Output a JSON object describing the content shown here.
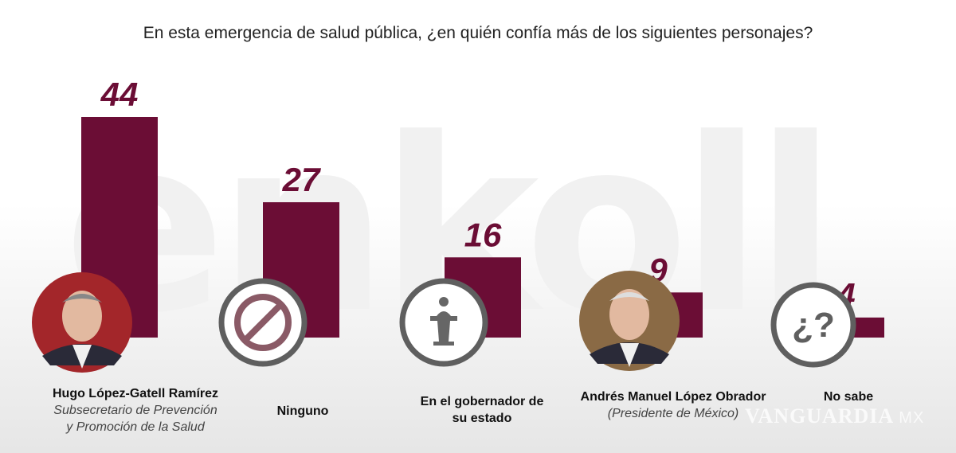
{
  "chart_data": {
    "type": "bar",
    "title": "En esta emergencia de salud pública, ¿en quién confía más de los siguientes personajes?",
    "categories": [
      "Hugo López-Gatell Ramírez",
      "Ninguno",
      "En el gobernador de su estado",
      "Andrés Manuel López Obrador",
      "No sabe"
    ],
    "subtitles": [
      "Subsecretario de Prevención y Promoción de la Salud",
      "",
      "",
      "(Presidente de México)",
      ""
    ],
    "icons": [
      "photo-lopez-gatell",
      "prohibited-icon",
      "podium-speaker-icon",
      "photo-amlo",
      "question-mark-icon"
    ],
    "values": [
      44,
      27,
      16,
      9,
      4
    ],
    "ylim": [
      0,
      44
    ],
    "grid": false,
    "bar_color": "#6b0d35"
  },
  "watermark": "enkoll",
  "source_watermark": "VANGUARDIA",
  "source_suffix": "MX",
  "label_lines": {
    "gob1": "En el gobernador de",
    "gob2": "su estado",
    "hugo_sub1": "Subsecretario de Prevención",
    "hugo_sub2": "y Promoción de la Salud"
  }
}
